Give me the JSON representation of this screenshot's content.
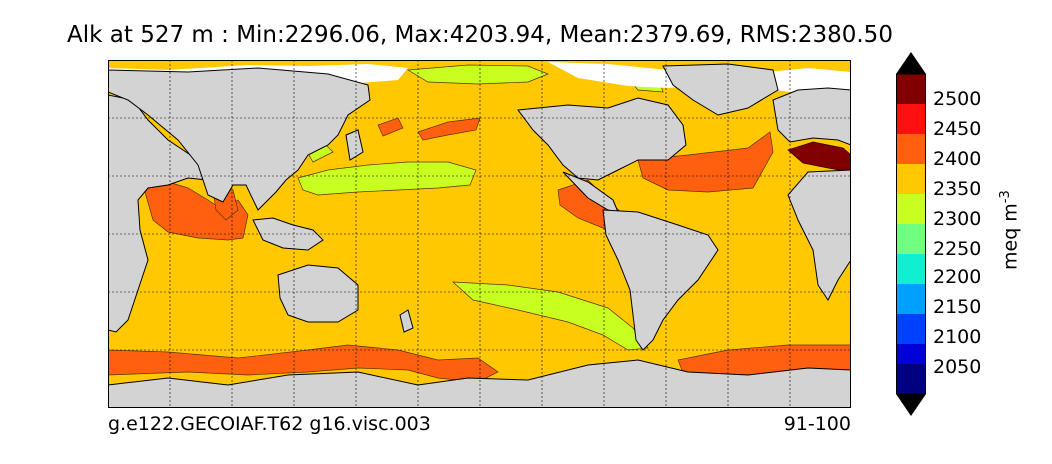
{
  "title": "Alk at 527 m : Min:2296.06, Max:4203.94, Mean:2379.69, RMS:2380.50",
  "footer": {
    "case_name": "g.e122.GECOIAF.T62 g16.visc.003",
    "year_range": "91-100"
  },
  "colorbar": {
    "unit": "meq m",
    "unit_exponent": "-3",
    "ticks": [
      "2500",
      "2450",
      "2400",
      "2350",
      "2300",
      "2250",
      "2200",
      "2150",
      "2100",
      "2050"
    ],
    "colors": [
      "#000080",
      "#0000d8",
      "#0040ff",
      "#00a0ff",
      "#10f0d0",
      "#70ff80",
      "#c8ff20",
      "#ffc800",
      "#ff6010",
      "#ff1010",
      "#800000"
    ],
    "extend": "both"
  },
  "map_colors": {
    "land": "#d3d3d3",
    "missing": "#ffffff",
    "band_2300": "#c8ff20",
    "band_2350": "#ffc800",
    "band_2400": "#ff6010",
    "band_2450": "#ff1010",
    "band_2500": "#800000"
  }
}
